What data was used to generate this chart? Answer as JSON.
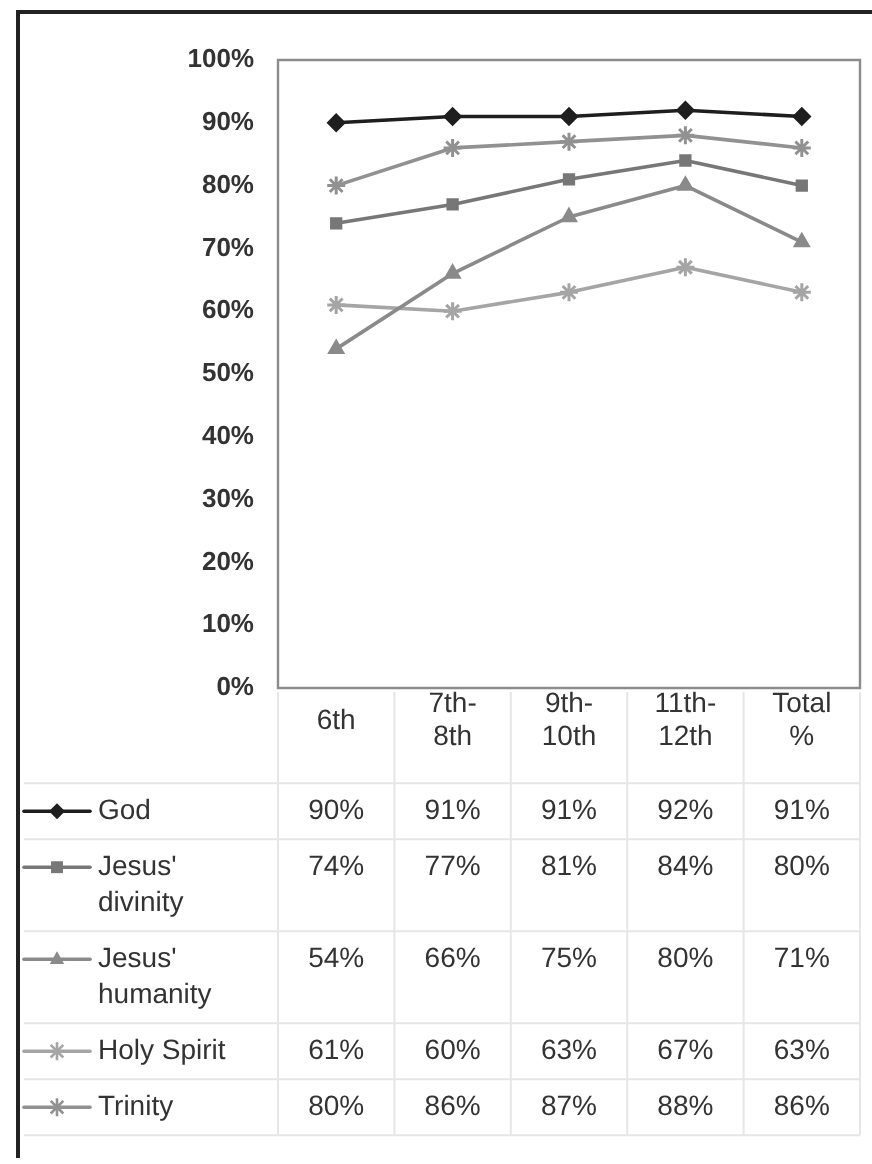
{
  "chart_data": {
    "type": "line",
    "categories": [
      "6th",
      "7th-8th",
      "9th-10th",
      "11th-12th",
      "Total %"
    ],
    "series": [
      {
        "name": "God",
        "color": "#1e1e1e",
        "marker": "diamond",
        "values": [
          90,
          91,
          91,
          92,
          91
        ],
        "value_labels": [
          "90%",
          "91%",
          "91%",
          "92%",
          "91%"
        ]
      },
      {
        "name": "Jesus' divinity",
        "color": "#777777",
        "marker": "square",
        "values": [
          74,
          77,
          81,
          84,
          80
        ],
        "value_labels": [
          "74%",
          "77%",
          "81%",
          "84%",
          "80%"
        ]
      },
      {
        "name": "Jesus' humanity",
        "color": "#8a8a8a",
        "marker": "triangle",
        "values": [
          54,
          66,
          75,
          80,
          71
        ],
        "value_labels": [
          "54%",
          "66%",
          "75%",
          "80%",
          "71%"
        ]
      },
      {
        "name": "Holy Spirit",
        "color": "#a5a5a5",
        "marker": "cross",
        "values": [
          61,
          60,
          63,
          67,
          63
        ],
        "value_labels": [
          "61%",
          "60%",
          "63%",
          "67%",
          "63%"
        ]
      },
      {
        "name": "Trinity",
        "color": "#919191",
        "marker": "cross",
        "values": [
          80,
          86,
          87,
          88,
          86
        ],
        "value_labels": [
          "80%",
          "86%",
          "87%",
          "88%",
          "86%"
        ]
      }
    ],
    "ylim": [
      0,
      100
    ],
    "yticks": [
      {
        "value": 0,
        "label": "0%"
      },
      {
        "value": 10,
        "label": "10%"
      },
      {
        "value": 20,
        "label": "20%"
      },
      {
        "value": 30,
        "label": "30%"
      },
      {
        "value": 40,
        "label": "40%"
      },
      {
        "value": 50,
        "label": "50%"
      },
      {
        "value": 60,
        "label": "60%"
      },
      {
        "value": 70,
        "label": "70%"
      },
      {
        "value": 80,
        "label": "80%"
      },
      {
        "value": 90,
        "label": "90%"
      },
      {
        "value": 100,
        "label": "100%"
      }
    ],
    "legend": "bottom left"
  }
}
